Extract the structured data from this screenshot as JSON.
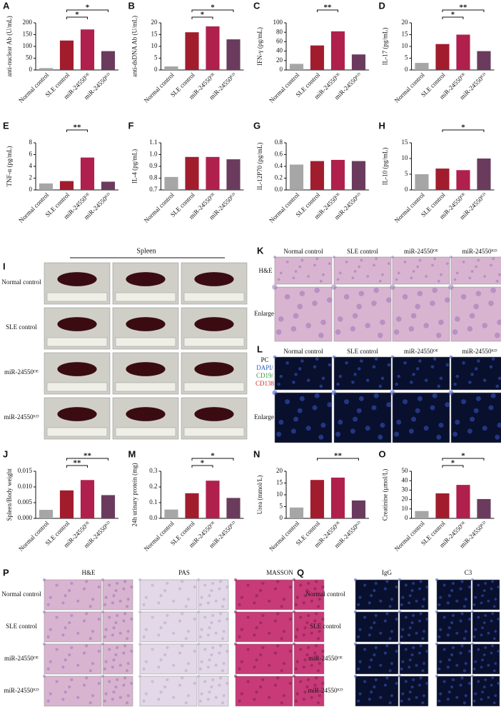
{
  "chart_data": [
    {
      "type": "bar",
      "panel": "A",
      "ylabel": "anti-nuclear Ab (U/mL)",
      "categories": [
        "Normal control",
        "SLE control",
        "miR-24550ᴼᴱ",
        "miR-24550ᴷᴰ"
      ],
      "values": [
        8,
        125,
        172,
        80
      ],
      "colors": [
        "#a6a6a6",
        "#a11d2e",
        "#b0204d",
        "#6b3b5e"
      ],
      "ylim": [
        0,
        200
      ],
      "yticks": [
        0,
        50,
        100,
        150,
        200
      ],
      "brackets": [
        {
          "text": "*",
          "between": [
            1,
            3
          ]
        },
        {
          "text": "*",
          "between": [
            1,
            2
          ]
        }
      ]
    },
    {
      "type": "bar",
      "panel": "B",
      "ylabel": "anti-dsDNA Ab (U/mL)",
      "categories": [
        "Normal control",
        "SLE control",
        "miR-24550ᴼᴱ",
        "miR-24550ᴷᴰ"
      ],
      "values": [
        1.5,
        16,
        18.5,
        13
      ],
      "colors": [
        "#a6a6a6",
        "#a11d2e",
        "#b0204d",
        "#6b3b5e"
      ],
      "ylim": [
        0,
        20
      ],
      "yticks": [
        0,
        5,
        10,
        15,
        20
      ],
      "brackets": [
        {
          "text": "*",
          "between": [
            1,
            3
          ]
        },
        {
          "text": "*",
          "between": [
            1,
            2
          ]
        }
      ]
    },
    {
      "type": "bar",
      "panel": "C",
      "ylabel": "IFN-γ (pg/mL)",
      "categories": [
        "Normal control",
        "SLE control",
        "miR-24550ᴼᴱ",
        "miR-24550ᴷᴰ"
      ],
      "values": [
        13,
        52,
        82,
        33
      ],
      "colors": [
        "#a6a6a6",
        "#a11d2e",
        "#b0204d",
        "#6b3b5e"
      ],
      "ylim": [
        0,
        100
      ],
      "yticks": [
        0,
        20,
        40,
        60,
        80,
        100
      ],
      "brackets": [
        {
          "text": "**",
          "between": [
            1,
            2
          ]
        }
      ]
    },
    {
      "type": "bar",
      "panel": "D",
      "ylabel": "IL-17 (pg/mL)",
      "categories": [
        "Normal control",
        "SLE control",
        "miR-24550ᴼᴱ",
        "miR-24550ᴷᴰ"
      ],
      "values": [
        3,
        11,
        15,
        8
      ],
      "colors": [
        "#a6a6a6",
        "#a11d2e",
        "#b0204d",
        "#6b3b5e"
      ],
      "ylim": [
        0,
        20
      ],
      "yticks": [
        0,
        5,
        10,
        15,
        20
      ],
      "brackets": [
        {
          "text": "**",
          "between": [
            1,
            3
          ]
        },
        {
          "text": "*",
          "between": [
            1,
            2
          ]
        }
      ]
    },
    {
      "type": "bar",
      "panel": "E",
      "ylabel": "TNF-α (pg/mL)",
      "categories": [
        "Normal control",
        "SLE control",
        "miR-24550ᴼᴱ",
        "miR-24550ᴷᴰ"
      ],
      "values": [
        1.1,
        1.5,
        5.5,
        1.4
      ],
      "colors": [
        "#a6a6a6",
        "#a11d2e",
        "#b0204d",
        "#6b3b5e"
      ],
      "ylim": [
        0,
        8
      ],
      "yticks": [
        0,
        2,
        4,
        6,
        8
      ],
      "brackets": [
        {
          "text": "**",
          "between": [
            1,
            2
          ]
        }
      ]
    },
    {
      "type": "bar",
      "panel": "F",
      "ylabel": "IL-4 (pg/mL)",
      "categories": [
        "Normal control",
        "SLE control",
        "miR-24550ᴼᴱ",
        "miR-24550ᴷᴰ"
      ],
      "values": [
        0.81,
        0.98,
        0.98,
        0.96
      ],
      "colors": [
        "#a6a6a6",
        "#a11d2e",
        "#b0204d",
        "#6b3b5e"
      ],
      "ylim": [
        0.7,
        1.1
      ],
      "yticks": [
        0.7,
        0.8,
        0.9,
        {
          "value": 1.0,
          "label": "1.0"
        },
        1.1
      ],
      "brackets": []
    },
    {
      "type": "bar",
      "panel": "G",
      "ylabel": "IL-12P70 (pg/mL)",
      "categories": [
        "Normal control",
        "SLE control",
        "miR-24550ᴼᴱ",
        "miR-24550ᴷᴰ"
      ],
      "values": [
        0.43,
        0.49,
        0.51,
        0.49
      ],
      "colors": [
        "#a6a6a6",
        "#a11d2e",
        "#b0204d",
        "#6b3b5e"
      ],
      "ylim": [
        0,
        0.8
      ],
      "yticks": [
        {
          "value": 0,
          "label": "0.0"
        },
        0.2,
        0.4,
        0.6,
        0.8
      ],
      "brackets": []
    },
    {
      "type": "bar",
      "panel": "H",
      "ylabel": "IL-10 (pg/mL)",
      "categories": [
        "Normal control",
        "SLE control",
        "miR-24550ᴼᴱ",
        "miR-24550ᴷᴰ"
      ],
      "values": [
        5,
        6.8,
        6.3,
        10
      ],
      "colors": [
        "#a6a6a6",
        "#a11d2e",
        "#b0204d",
        "#6b3b5e"
      ],
      "ylim": [
        0,
        15
      ],
      "yticks": [
        0,
        5,
        10,
        15
      ],
      "brackets": [
        {
          "text": "*",
          "between": [
            1,
            3
          ]
        }
      ]
    },
    {
      "type": "bar",
      "panel": "J",
      "ylabel": "Spleen/Body weight",
      "categories": [
        "Normal control",
        "SLE control",
        "miR-24550ᴼᴱ",
        "miR-24550ᴷᴰ"
      ],
      "values": [
        0.0027,
        0.0089,
        0.0122,
        0.0074
      ],
      "colors": [
        "#a6a6a6",
        "#a11d2e",
        "#b0204d",
        "#6b3b5e"
      ],
      "ylim": [
        0,
        0.015
      ],
      "yticks": [
        {
          "value": 0,
          "label": "0.000"
        },
        {
          "value": 0.005,
          "label": "0.005"
        },
        {
          "value": 0.01,
          "label": "0.010"
        },
        0.015
      ],
      "brackets": [
        {
          "text": "**",
          "between": [
            1,
            3
          ]
        },
        {
          "text": "**",
          "between": [
            1,
            2
          ]
        }
      ]
    },
    {
      "type": "bar",
      "panel": "M",
      "ylabel": "24h urinary protein (mg)",
      "categories": [
        "Normal control",
        "SLE control",
        "miR-24550ᴼᴱ",
        "miR-24550ᴷᴰ"
      ],
      "values": [
        0.056,
        0.16,
        0.24,
        0.13
      ],
      "colors": [
        "#a6a6a6",
        "#a11d2e",
        "#b0204d",
        "#6b3b5e"
      ],
      "ylim": [
        0,
        0.3
      ],
      "yticks": [
        {
          "value": 0,
          "label": "0.0"
        },
        0.1,
        0.2,
        0.3
      ],
      "brackets": [
        {
          "text": "*",
          "between": [
            1,
            3
          ]
        },
        {
          "text": "*",
          "between": [
            1,
            2
          ]
        }
      ]
    },
    {
      "type": "bar",
      "panel": "N",
      "ylabel": "Urea (mmol/L)",
      "categories": [
        "Normal control",
        "SLE control",
        "miR-24550ᴼᴱ",
        "miR-24550ᴷᴰ"
      ],
      "values": [
        4.6,
        16.3,
        17.3,
        7.6
      ],
      "colors": [
        "#a6a6a6",
        "#a11d2e",
        "#b0204d",
        "#6b3b5e"
      ],
      "ylim": [
        0,
        20
      ],
      "yticks": [
        0,
        5,
        10,
        15,
        20
      ],
      "brackets": [
        {
          "text": "**",
          "between": [
            1,
            3
          ]
        }
      ]
    },
    {
      "type": "bar",
      "panel": "O",
      "ylabel": "Creatinine (μmol/L)",
      "categories": [
        "Normal control",
        "SLE control",
        "miR-24550ᴼᴱ",
        "miR-24550ᴷᴰ"
      ],
      "values": [
        7.8,
        26.5,
        35.5,
        20.5
      ],
      "colors": [
        "#a6a6a6",
        "#a11d2e",
        "#b0204d",
        "#6b3b5e"
      ],
      "ylim": [
        0,
        50
      ],
      "yticks": [
        0,
        10,
        20,
        30,
        40,
        50
      ],
      "brackets": [
        {
          "text": "*",
          "between": [
            1,
            3
          ]
        },
        {
          "text": "*",
          "between": [
            1,
            2
          ]
        }
      ]
    }
  ],
  "spleen_panel": {
    "panel": "I",
    "title": "Spleen",
    "rows": [
      "Normal control",
      "SLE control",
      "miR-24550ᴼᴱ",
      "miR-24550ᴷᴰ"
    ]
  },
  "he_panel": {
    "panel": "K",
    "columns": [
      "Normal control",
      "SLE control",
      "miR-24550ᴼᴱ",
      "miR-24550ᴷᴰ"
    ],
    "rows": [
      "H&E",
      "Enlarge"
    ]
  },
  "if_panel": {
    "panel": "L",
    "columns": [
      "Normal control",
      "SLE control",
      "miR-24550ᴼᴱ",
      "miR-24550ᴷᴰ"
    ],
    "stain_labels": [
      {
        "text": "PC",
        "color": "#111111"
      },
      {
        "text": "DAPI/",
        "color": "#2b59c3"
      },
      {
        "text": "CD19/",
        "color": "#2e9b3a"
      },
      {
        "text": "CD138",
        "color": "#d22b2b"
      }
    ],
    "rows": [
      "Enlarge"
    ]
  },
  "kidney_panel": {
    "panel": "P",
    "stains": [
      "H&E",
      "PAS",
      "MASSON"
    ],
    "rows": [
      "Normal control",
      "SLE control",
      "miR-24550ᴼᴱ",
      "miR-24550ᴷᴰ"
    ]
  },
  "immuno_panel": {
    "panel": "Q",
    "stains": [
      "IgG",
      "C3"
    ],
    "rows": [
      "Normal control",
      "SLE control",
      "miR-24550ᴼᴱ",
      "miR-24550ᴷᴰ"
    ]
  }
}
